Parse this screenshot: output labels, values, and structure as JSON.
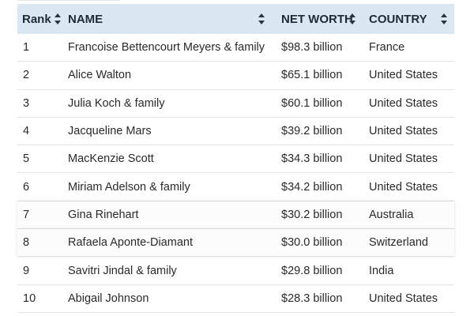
{
  "table": {
    "headers": {
      "rank": "Rank",
      "name": "NAME",
      "net_worth": "NET WORTH",
      "country": "COUNTRY"
    },
    "rows": [
      {
        "rank": "1",
        "name": "Francoise Bettencourt Meyers & family",
        "net_worth": "$98.3 billion",
        "country": "France"
      },
      {
        "rank": "2",
        "name": "Alice Walton",
        "net_worth": "$65.1 billion",
        "country": "United States"
      },
      {
        "rank": "3",
        "name": "Julia Koch & family",
        "net_worth": "$60.1 billion",
        "country": "United States"
      },
      {
        "rank": "4",
        "name": "Jacqueline Mars",
        "net_worth": "$39.2 billion",
        "country": "United States"
      },
      {
        "rank": "5",
        "name": "MacKenzie Scott",
        "net_worth": "$34.3 billion",
        "country": "United States"
      },
      {
        "rank": "6",
        "name": "Miriam Adelson & family",
        "net_worth": "$34.2 billion",
        "country": "United States"
      },
      {
        "rank": "7",
        "name": "Gina Rinehart",
        "net_worth": "$30.2 billion",
        "country": "Australia"
      },
      {
        "rank": "8",
        "name": "Rafaela Aponte-Diamant",
        "net_worth": "$30.0 billion",
        "country": "Switzerland"
      },
      {
        "rank": "9",
        "name": "Savitri Jindal & family",
        "net_worth": "$29.8 billion",
        "country": "India"
      },
      {
        "rank": "10",
        "name": "Abigail Johnson",
        "net_worth": "$28.3 billion",
        "country": "United States"
      }
    ]
  },
  "icons": {
    "sort": "sort-arrows-icon"
  },
  "colors": {
    "header_bg": "#dbe8f3",
    "row_border": "#e3e3e3"
  }
}
